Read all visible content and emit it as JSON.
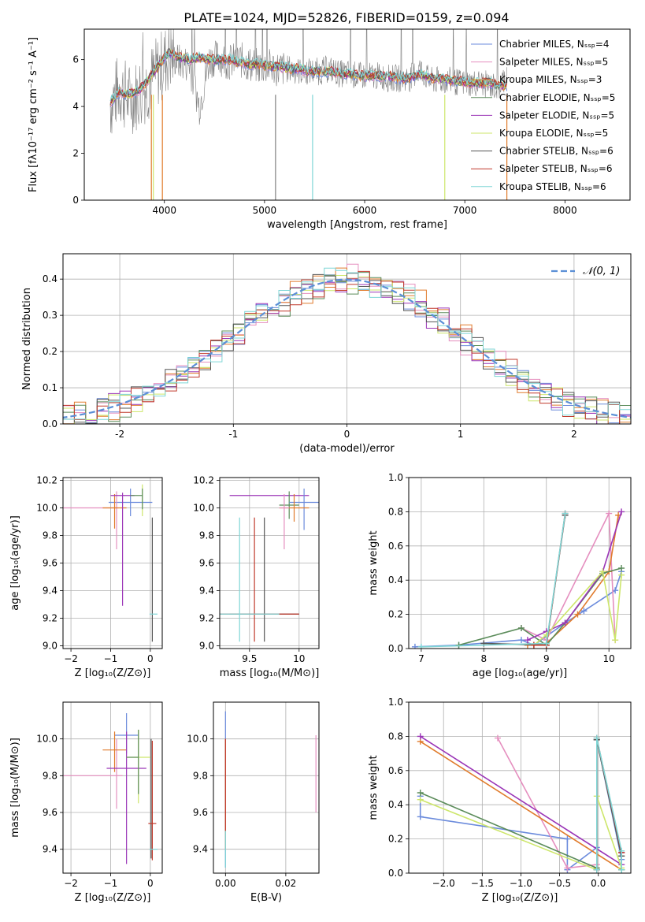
{
  "chart_data": [
    {
      "type": "line",
      "title": "PLATE=1024, MJD=52826, FIBERID=0159, z=0.094",
      "xlabel": "wavelength [Angstrom, rest frame]",
      "ylabel": "Flux [fλ10⁻¹⁷ erg cm⁻² s⁻¹ A⁻¹]",
      "xlim": [
        3200,
        8650
      ],
      "ylim": [
        0,
        7.3
      ],
      "xticks": [
        4000,
        5000,
        6000,
        7000,
        8000
      ],
      "yticks": [
        0,
        2,
        4,
        6
      ],
      "grid": false,
      "legend": "top-right",
      "series": [
        {
          "name": "Chabrier MILES, Nₛₛₚ=4",
          "color": "#6b8bdc"
        },
        {
          "name": "Salpeter MILES, Nₛₛₚ=5",
          "color": "#e58fbf"
        },
        {
          "name": "Kroupa MILES, Nₛₛₚ=3",
          "color": "#e07b2c"
        },
        {
          "name": "Chabrier ELODIE, Nₛₛₚ=5",
          "color": "#5b8c5a"
        },
        {
          "name": "Salpeter ELODIE, Nₛₛₚ=5",
          "color": "#9b36b7"
        },
        {
          "name": "Kroupa ELODIE, Nₛₛₚ=5",
          "color": "#cde66a"
        },
        {
          "name": "Chabrier STELIB, Nₛₛₚ=6",
          "color": "#555555"
        },
        {
          "name": "Salpeter STELIB, Nₛₛₚ=6",
          "color": "#c0392b"
        },
        {
          "name": "Kroupa STELIB, Nₛₛₚ=6",
          "color": "#7fd6d6"
        }
      ],
      "data": {
        "wavelength": [
          3450,
          3550,
          3650,
          3750,
          3850,
          3950,
          4050,
          4150,
          4250,
          4350,
          4450,
          4550,
          4650,
          4750,
          4850,
          4950,
          5050,
          5150,
          5250,
          5350,
          5450,
          5550,
          5650,
          5750,
          5850,
          5950,
          6050,
          6150,
          6250,
          6350,
          6450,
          6550,
          6650,
          6750,
          6850,
          6950,
          7050,
          7150,
          7250,
          7350,
          7420
        ],
        "observed": [
          4.0,
          4.8,
          4.3,
          4.6,
          5.0,
          5.6,
          6.2,
          5.9,
          5.8,
          4.0,
          6.0,
          6.1,
          5.9,
          6.0,
          5.8,
          5.7,
          5.7,
          5.6,
          5.6,
          5.5,
          5.5,
          5.5,
          5.6,
          5.4,
          5.4,
          5.3,
          5.3,
          5.3,
          5.2,
          5.2,
          5.2,
          5.6,
          5.1,
          5.1,
          5.1,
          5.0,
          5.0,
          5.0,
          4.9,
          4.8,
          5.5
        ],
        "model": [
          4.1,
          4.6,
          4.5,
          4.7,
          5.2,
          5.8,
          6.3,
          6.1,
          6.0,
          6.1,
          6.0,
          6.0,
          6.0,
          5.9,
          5.8,
          5.8,
          5.7,
          5.7,
          5.6,
          5.6,
          5.5,
          5.5,
          5.5,
          5.4,
          5.4,
          5.3,
          5.3,
          5.3,
          5.3,
          5.2,
          5.2,
          5.4,
          5.2,
          5.2,
          5.1,
          5.1,
          5.0,
          5.0,
          5.0,
          4.9,
          4.9
        ]
      }
    },
    {
      "type": "histogram",
      "xlabel": "(data-model)/error",
      "ylabel": "Normed distribution",
      "xlim": [
        -2.5,
        2.5
      ],
      "ylim": [
        0,
        0.47
      ],
      "xticks": [
        -2,
        -1,
        0,
        1,
        2
      ],
      "yticks": [
        0.0,
        0.1,
        0.2,
        0.3,
        0.4
      ],
      "grid": true,
      "legend": "top-right",
      "legend_label": "𝒩(0, 1)",
      "bin_width": 0.1,
      "series": [
        {
          "color": "#6b8bdc",
          "offset": 0.0
        },
        {
          "color": "#e58fbf",
          "offset": 0.018
        },
        {
          "color": "#e07b2c",
          "offset": -0.016
        },
        {
          "color": "#5b8c5a",
          "offset": 0.012
        },
        {
          "color": "#9b36b7",
          "offset": -0.01
        },
        {
          "color": "#cde66a",
          "offset": 0.02
        },
        {
          "color": "#555555",
          "offset": -0.006
        },
        {
          "color": "#c0392b",
          "offset": 0.008
        },
        {
          "color": "#7fd6d6",
          "offset": -0.012
        }
      ]
    },
    {
      "type": "scatter",
      "panel": "age-vs-Z",
      "xlabel": "Z [log₁₀(Z/Z⊙)]",
      "ylabel": "age  [log₁₀(age/yr)]",
      "xlim": [
        -2.2,
        0.3
      ],
      "ylim": [
        8.98,
        10.22
      ],
      "xticks": [
        -2,
        -1,
        0
      ],
      "xticklabels": [
        "−2",
        "−1",
        "0"
      ],
      "yticks": [
        9.0,
        9.2,
        9.4,
        9.6,
        9.8,
        10.0,
        10.2
      ],
      "points": [
        {
          "color": "#6b8bdc",
          "x": -0.5,
          "y": 10.04,
          "xerr": [
            0.55,
            0.55
          ],
          "yerr": [
            0.1,
            0.1
          ]
        },
        {
          "color": "#e58fbf",
          "x": -1.5,
          "y": 10.0,
          "xerr": [
            0.7,
            0.7
          ],
          "yerr": [
            0.0,
            0.0
          ]
        },
        {
          "color": "#e58fbf",
          "x": -0.85,
          "y": 10.0,
          "xerr": [
            0.0,
            0.0
          ],
          "yerr": [
            0.3,
            0.12
          ]
        },
        {
          "color": "#e07b2c",
          "x": -0.9,
          "y": 10.0,
          "xerr": [
            0.3,
            0.3
          ],
          "yerr": [
            0.15,
            0.1
          ]
        },
        {
          "color": "#9b36b7",
          "x": -0.7,
          "y": 10.09,
          "xerr": [
            0.3,
            0.3
          ],
          "yerr": [
            0.8,
            0.02
          ]
        },
        {
          "color": "#cde66a",
          "x": -0.2,
          "y": 10.09,
          "xerr": [
            0.0,
            0.0
          ],
          "yerr": [
            0.15,
            0.08
          ]
        },
        {
          "color": "#5b8c5a",
          "x": -0.2,
          "y": 10.09,
          "xerr": [
            0.3,
            0.0
          ],
          "yerr": [
            0.1,
            0.05
          ]
        },
        {
          "color": "#555555",
          "x": 0.05,
          "y": 9.23,
          "xerr": [
            0.0,
            0.0
          ],
          "yerr": [
            0.2,
            0.7
          ]
        },
        {
          "color": "#7fd6d6",
          "x": 0.08,
          "y": 9.23,
          "xerr": [
            0.1,
            0.1
          ],
          "yerr": [
            0.0,
            0.0
          ]
        }
      ]
    },
    {
      "type": "scatter",
      "panel": "age-vs-mass",
      "xlabel": "mass [log₁₀(M/M⊙)]",
      "xlim": [
        9.2,
        10.2
      ],
      "ylim": [
        8.98,
        10.22
      ],
      "xticks": [
        9.5,
        10.0
      ],
      "yticks": [
        9.0,
        9.2,
        9.4,
        9.6,
        9.8,
        10.0,
        10.2
      ],
      "points": [
        {
          "color": "#9b36b7",
          "x": 9.7,
          "y": 10.09,
          "xerr": [
            0.4,
            0.4
          ],
          "yerr": [
            0.0,
            0.0
          ]
        },
        {
          "color": "#5b8c5a",
          "x": 9.9,
          "y": 10.02,
          "xerr": [
            0.1,
            0.1
          ],
          "yerr": [
            0.1,
            0.1
          ]
        },
        {
          "color": "#6b8bdc",
          "x": 10.05,
          "y": 10.04,
          "xerr": [
            0.15,
            0.15
          ],
          "yerr": [
            0.2,
            0.1
          ]
        },
        {
          "color": "#e07b2c",
          "x": 9.95,
          "y": 10.0,
          "xerr": [
            0.15,
            0.15
          ],
          "yerr": [
            0.1,
            0.1
          ]
        },
        {
          "color": "#e58fbf",
          "x": 9.85,
          "y": 10.0,
          "xerr": [
            0.05,
            0.05
          ],
          "yerr": [
            0.3,
            0.1
          ]
        },
        {
          "color": "#555555",
          "x": 9.65,
          "y": 9.23,
          "xerr": [
            0.35,
            0.35
          ],
          "yerr": [
            0.2,
            0.7
          ]
        },
        {
          "color": "#c0392b",
          "x": 9.55,
          "y": 9.23,
          "xerr": [
            0.45,
            0.45
          ],
          "yerr": [
            0.2,
            0.7
          ]
        },
        {
          "color": "#7fd6d6",
          "x": 9.4,
          "y": 9.23,
          "xerr": [
            0.2,
            0.4
          ],
          "yerr": [
            0.2,
            0.7
          ]
        }
      ]
    },
    {
      "type": "line",
      "panel": "mass-weight-vs-age",
      "xlabel": "age  [log₁₀(age/yr)]",
      "ylabel": "mass weight",
      "xlim": [
        6.8,
        10.35
      ],
      "ylim": [
        0,
        1.0
      ],
      "xticks": [
        7,
        8,
        9,
        10
      ],
      "yticks": [
        0.0,
        0.2,
        0.4,
        0.6,
        0.8,
        1.0
      ],
      "grid": true,
      "series": [
        {
          "color": "#6b8bdc",
          "x": [
            6.9,
            7.6,
            8.6,
            8.8,
            9.3,
            9.6,
            10.1,
            10.2
          ],
          "y": [
            0.01,
            0.02,
            0.05,
            0.02,
            0.15,
            0.22,
            0.34,
            0.45
          ]
        },
        {
          "color": "#e58fbf",
          "x": [
            8.6,
            9.0,
            10.0,
            10.1
          ],
          "y": [
            0.12,
            0.05,
            0.79,
            0.05
          ]
        },
        {
          "color": "#e07b2c",
          "x": [
            8.7,
            9.0,
            9.5,
            10.0,
            10.15
          ],
          "y": [
            0.02,
            0.03,
            0.2,
            0.45,
            0.78
          ]
        },
        {
          "color": "#5b8c5a",
          "x": [
            7.6,
            8.6,
            9.0,
            9.3,
            9.9,
            10.2
          ],
          "y": [
            0.02,
            0.12,
            0.02,
            0.15,
            0.44,
            0.47
          ]
        },
        {
          "color": "#9b36b7",
          "x": [
            8.7,
            9.0,
            9.3,
            9.9,
            10.2
          ],
          "y": [
            0.05,
            0.1,
            0.15,
            0.45,
            0.8
          ]
        },
        {
          "color": "#cde66a",
          "x": [
            8.8,
            9.0,
            9.9,
            10.1,
            10.2
          ],
          "y": [
            0.02,
            0.08,
            0.45,
            0.05,
            0.43
          ]
        },
        {
          "color": "#555555",
          "x": [
            8.0,
            9.0,
            9.3
          ],
          "y": [
            0.03,
            0.02,
            0.78
          ]
        },
        {
          "color": "#c0392b",
          "x": [
            8.8,
            9.0,
            9.3
          ],
          "y": [
            0.02,
            0.02,
            0.79
          ]
        },
        {
          "color": "#7fd6d6",
          "x": [
            7.0,
            9.0,
            9.3
          ],
          "y": [
            0.01,
            0.03,
            0.79
          ]
        }
      ]
    },
    {
      "type": "scatter",
      "panel": "mass-vs-Z",
      "xlabel": "Z [log₁₀(Z/Z⊙)]",
      "ylabel": "mass [log₁₀(M/M⊙)]",
      "xlim": [
        -2.2,
        0.3
      ],
      "ylim": [
        9.27,
        10.2
      ],
      "xticks": [
        -2,
        -1,
        0
      ],
      "xticklabels": [
        "−2",
        "−1",
        "0"
      ],
      "yticks": [
        9.4,
        9.6,
        9.8,
        10.0
      ],
      "points": [
        {
          "color": "#6b8bdc",
          "x": -0.6,
          "y": 10.02,
          "xerr": [
            0.3,
            0.3
          ],
          "yerr": [
            0.1,
            0.12
          ]
        },
        {
          "color": "#e58fbf",
          "x": -1.5,
          "y": 9.8,
          "xerr": [
            0.8,
            0.8
          ],
          "yerr": [
            0.0,
            0.0
          ]
        },
        {
          "color": "#e58fbf",
          "x": -0.85,
          "y": 9.9,
          "xerr": [
            0.0,
            0.0
          ],
          "yerr": [
            0.28,
            0.1
          ]
        },
        {
          "color": "#e07b2c",
          "x": -0.9,
          "y": 9.94,
          "xerr": [
            0.3,
            0.3
          ],
          "yerr": [
            0.12,
            0.1
          ]
        },
        {
          "color": "#9b36b7",
          "x": -0.6,
          "y": 9.84,
          "xerr": [
            0.5,
            0.5
          ],
          "yerr": [
            0.52,
            0.2
          ]
        },
        {
          "color": "#cde66a",
          "x": -0.3,
          "y": 9.9,
          "xerr": [
            0.3,
            0.3
          ],
          "yerr": [
            0.25,
            0.15
          ]
        },
        {
          "color": "#5b8c5a",
          "x": -0.3,
          "y": 9.9,
          "xerr": [
            0.3,
            0.0
          ],
          "yerr": [
            0.2,
            0.15
          ]
        },
        {
          "color": "#555555",
          "x": 0.02,
          "y": 9.9,
          "xerr": [
            0.0,
            0.0
          ],
          "yerr": [
            0.55,
            0.1
          ]
        },
        {
          "color": "#c0392b",
          "x": 0.05,
          "y": 9.54,
          "xerr": [
            0.1,
            0.1
          ],
          "yerr": [
            0.2,
            0.45
          ]
        },
        {
          "color": "#7fd6d6",
          "x": 0.08,
          "y": 9.4,
          "xerr": [
            0.1,
            0.1
          ],
          "yerr": [
            0.0,
            0.0
          ]
        }
      ]
    },
    {
      "type": "scatter",
      "panel": "mass-vs-EBV",
      "xlabel": "E(B-V)",
      "xlim": [
        -0.004,
        0.031
      ],
      "ylim": [
        9.27,
        10.2
      ],
      "xticks": [
        0.0,
        0.02
      ],
      "xticklabels": [
        "0.00",
        "0.02"
      ],
      "yticks": [
        9.4,
        9.6,
        9.8,
        10.0
      ],
      "points": [
        {
          "color": "#6b8bdc",
          "x": 0.0,
          "y": 10.0,
          "xerr": [
            0.0,
            0.0
          ],
          "yerr": [
            0.7,
            0.15
          ]
        },
        {
          "color": "#e58fbf",
          "x": 0.03,
          "y": 9.8,
          "xerr": [
            0.0,
            0.0
          ],
          "yerr": [
            0.2,
            0.22
          ]
        },
        {
          "color": "#e07b2c",
          "x": 0.0,
          "y": 9.9,
          "xerr": [
            0.0,
            0.0
          ],
          "yerr": [
            0.5,
            0.1
          ]
        },
        {
          "color": "#c0392b",
          "x": 0.0,
          "y": 9.9,
          "xerr": [
            0.0,
            0.0
          ],
          "yerr": [
            0.4,
            0.1
          ]
        },
        {
          "color": "#7fd6d6",
          "x": 0.0,
          "y": 9.4,
          "xerr": [
            0.0,
            0.0
          ],
          "yerr": [
            0.1,
            0.1
          ]
        }
      ]
    },
    {
      "type": "line",
      "panel": "mass-weight-vs-Z",
      "xlabel": "Z [log₁₀(Z/Z⊙)]",
      "ylabel": "mass weight",
      "xlim": [
        -2.45,
        0.42
      ],
      "ylim": [
        0,
        1.0
      ],
      "xticks": [
        -2.0,
        -1.5,
        -1.0,
        -0.5,
        0.0
      ],
      "xticklabels": [
        "−2.0",
        "−1.5",
        "−1.0",
        "−0.5",
        "0.0"
      ],
      "yticks": [
        0.0,
        0.2,
        0.4,
        0.6,
        0.8,
        1.0
      ],
      "grid": true,
      "series": [
        {
          "color": "#6b8bdc",
          "x": [
            -2.3,
            -2.3,
            -0.4,
            -0.4,
            -0.02,
            -0.02,
            0.3,
            0.3
          ],
          "y": [
            0.45,
            0.33,
            0.2,
            0.02,
            0.15,
            0.78,
            0.08,
            0.02
          ]
        },
        {
          "color": "#e58fbf",
          "x": [
            -1.3,
            -0.4,
            -0.02,
            -0.02
          ],
          "y": [
            0.79,
            0.03,
            0.05,
            0.78
          ]
        },
        {
          "color": "#e07b2c",
          "x": [
            -2.3,
            0.3,
            0.3
          ],
          "y": [
            0.77,
            0.02,
            0.12
          ]
        },
        {
          "color": "#5b8c5a",
          "x": [
            -2.3,
            -0.02,
            -0.02,
            0.3,
            0.3
          ],
          "y": [
            0.47,
            0.03,
            0.78,
            0.1,
            0.02
          ]
        },
        {
          "color": "#9b36b7",
          "x": [
            -2.3,
            0.3,
            0.3
          ],
          "y": [
            0.8,
            0.05,
            0.12
          ]
        },
        {
          "color": "#cde66a",
          "x": [
            -2.3,
            -0.02,
            -0.02,
            0.3
          ],
          "y": [
            0.43,
            0.02,
            0.45,
            0.03
          ]
        },
        {
          "color": "#555555",
          "x": [
            -0.02,
            -0.02,
            0.3
          ],
          "y": [
            0.02,
            0.78,
            0.1
          ]
        },
        {
          "color": "#c0392b",
          "x": [
            -0.02,
            -0.02,
            0.3
          ],
          "y": [
            0.02,
            0.79,
            0.12
          ]
        },
        {
          "color": "#7fd6d6",
          "x": [
            -0.02,
            -0.02,
            0.3,
            0.3
          ],
          "y": [
            0.02,
            0.79,
            0.13,
            0.02
          ]
        }
      ]
    }
  ]
}
